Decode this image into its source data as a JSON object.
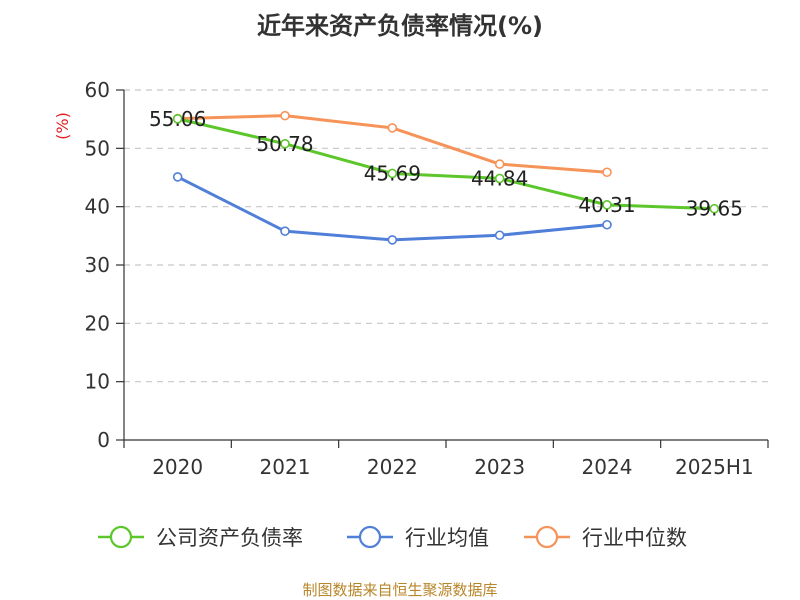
{
  "chart_data": {
    "type": "line",
    "title": "近年来资产负债率情况(%)",
    "ylabel": "(%)",
    "xlabel": "",
    "categories": [
      "2020",
      "2021",
      "2022",
      "2023",
      "2024",
      "2025H1"
    ],
    "ylim": [
      0,
      60
    ],
    "yticks": [
      0,
      10,
      20,
      30,
      40,
      50,
      60
    ],
    "grid": true,
    "legend_position": "bottom",
    "series": [
      {
        "name": "公司资产负债率",
        "color": "#5cc62b",
        "values": [
          55.06,
          50.78,
          45.69,
          44.84,
          40.31,
          39.65
        ],
        "labels": [
          "55.06",
          "50.78",
          "45.69",
          "44.84",
          "40.31",
          "39.65"
        ]
      },
      {
        "name": "行业均值",
        "color": "#4f7fd9",
        "values": [
          45.1,
          35.8,
          34.3,
          35.1,
          36.9,
          null
        ]
      },
      {
        "name": "行业中位数",
        "color": "#f59358",
        "values": [
          55.1,
          55.6,
          53.5,
          47.3,
          45.9,
          null
        ]
      }
    ]
  },
  "source": "制图数据来自恒生聚源数据库"
}
